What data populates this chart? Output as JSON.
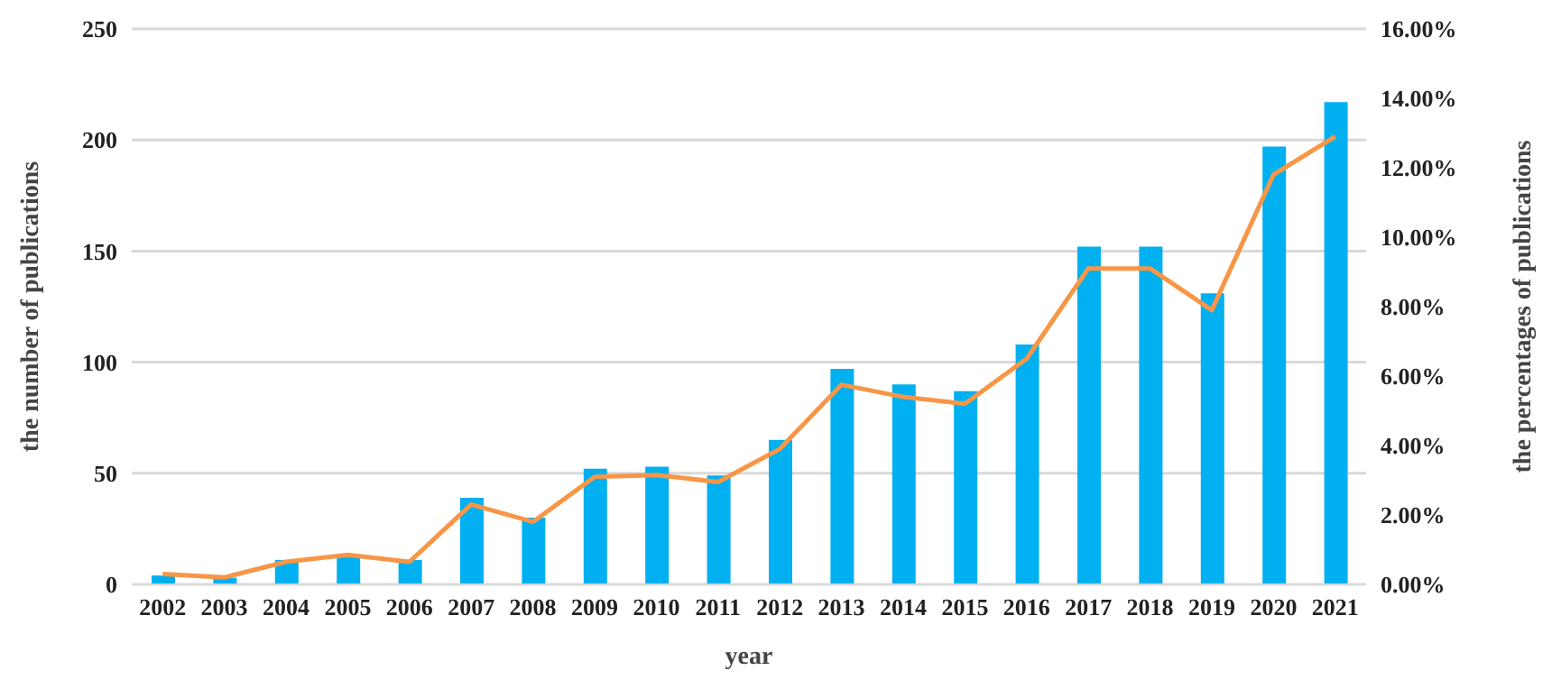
{
  "chart_data": {
    "type": "bar",
    "xlabel": "year",
    "ylabel": "the number of publications",
    "y2label": "the percentages of publications",
    "categories": [
      "2002",
      "2003",
      "2004",
      "2005",
      "2006",
      "2007",
      "2008",
      "2009",
      "2010",
      "2011",
      "2012",
      "2013",
      "2014",
      "2015",
      "2016",
      "2017",
      "2018",
      "2019",
      "2020",
      "2021"
    ],
    "series": [
      {
        "color": "#00b0f0",
        "values": [
          4,
          3,
          11,
          13,
          11,
          39,
          30,
          52,
          53,
          49,
          65,
          97,
          90,
          87,
          108,
          152,
          152,
          131,
          197,
          217
        ]
      },
      {
        "type": "line",
        "axis": "y2",
        "color": "#f79646",
        "values": [
          0.3,
          0.2,
          0.65,
          0.85,
          0.65,
          2.3,
          1.8,
          3.1,
          3.15,
          2.95,
          3.9,
          5.75,
          5.4,
          5.2,
          6.5,
          9.1,
          9.1,
          7.9,
          11.8,
          12.9
        ]
      }
    ],
    "ylim": [
      0,
      250
    ],
    "yticks": [
      0,
      50,
      100,
      150,
      200,
      250
    ],
    "y2lim": [
      0,
      16
    ],
    "y2ticks": [
      {
        "value": 0,
        "label": "0.00%"
      },
      {
        "value": 2,
        "label": "2.00%"
      },
      {
        "value": 4,
        "label": "4.00%"
      },
      {
        "value": 6,
        "label": "6.00%"
      },
      {
        "value": 8,
        "label": "8.00%"
      },
      {
        "value": 10,
        "label": "10.00%"
      },
      {
        "value": 12,
        "label": "12.00%"
      },
      {
        "value": 14,
        "label": "14.00%"
      },
      {
        "value": 16,
        "label": "16.00%"
      }
    ],
    "grid": "y",
    "legend": false,
    "marker": "none",
    "line_style": "solid"
  }
}
